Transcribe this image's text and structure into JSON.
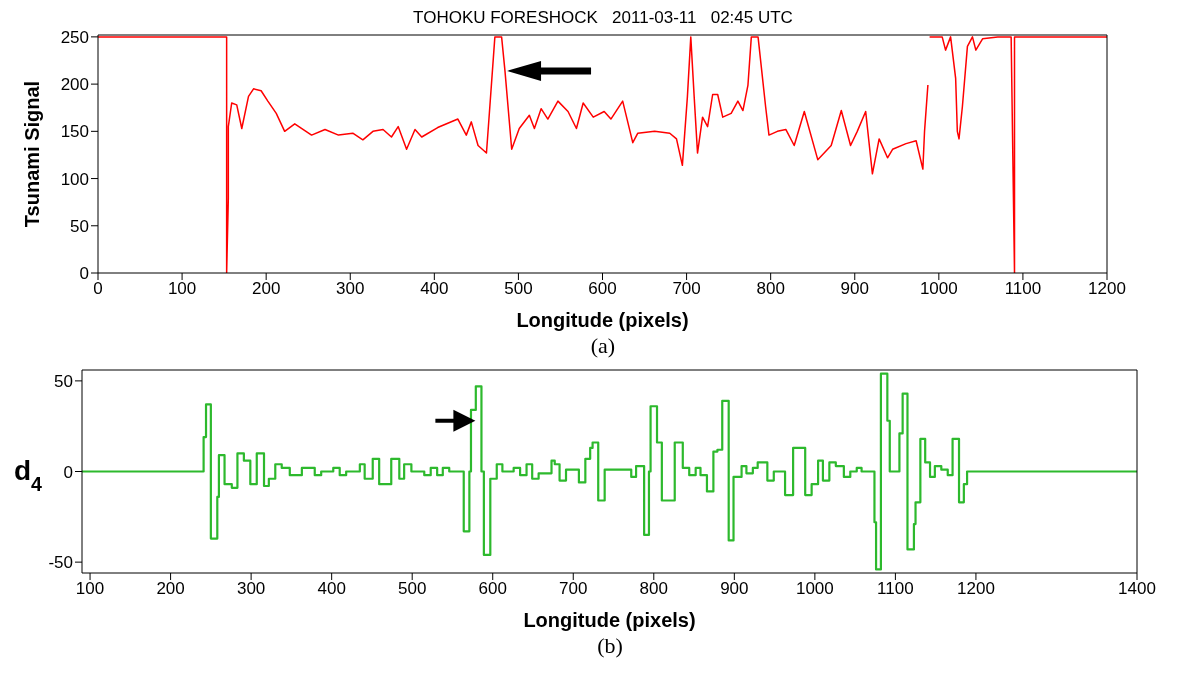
{
  "chart_data": [
    {
      "type": "line",
      "title": "TOHOKU FORESHOCK   2011-03-11   02:45 UTC",
      "xlabel": "Longitude (pixels)",
      "ylabel": "Tsunami Signal",
      "annotations": [
        "(a)"
      ],
      "color": "#ff0000",
      "xlim": [
        0,
        1200
      ],
      "xticks": [
        0,
        100,
        200,
        300,
        400,
        500,
        600,
        700,
        800,
        900,
        1000,
        1100,
        1200
      ],
      "ylim": [
        0,
        252
      ],
      "yticks": [
        0,
        50,
        100,
        150,
        200,
        250
      ],
      "x": [
        0,
        153,
        153,
        155,
        155,
        159,
        165,
        171,
        179,
        185,
        194,
        202,
        212,
        222,
        234,
        254,
        270,
        286,
        303,
        315,
        327,
        339,
        349,
        357,
        367,
        377,
        385,
        404,
        428,
        438,
        444,
        452,
        462,
        466,
        472,
        480,
        484,
        492,
        501,
        513,
        519,
        527,
        535,
        547,
        559,
        569,
        577,
        589,
        602,
        610,
        624,
        636,
        642,
        662,
        680,
        688,
        695,
        701,
        705,
        709,
        713,
        719,
        725,
        731,
        737,
        743,
        753,
        761,
        767,
        773,
        777,
        785,
        794,
        798,
        808,
        818,
        828,
        840,
        856,
        872,
        884,
        895,
        903,
        913,
        921,
        929,
        939,
        945,
        961,
        973,
        981,
        983,
        987,
        988,
        989,
        1004,
        1008,
        1014,
        1020,
        1022,
        1024,
        1028,
        1034,
        1040,
        1044,
        1052,
        1070,
        1086,
        1088,
        1090,
        1090,
        1200
      ],
      "values": [
        250,
        250,
        0,
        79,
        155,
        180,
        178,
        153,
        187,
        195,
        193,
        182,
        169,
        150,
        158,
        146,
        152,
        146,
        148,
        141,
        150,
        152,
        144,
        155,
        131,
        152,
        144,
        154,
        163,
        146,
        160,
        135,
        127,
        176,
        250,
        250,
        214,
        131,
        153,
        167,
        153,
        174,
        163,
        182,
        171,
        153,
        180,
        165,
        171,
        163,
        182,
        138,
        148,
        150,
        148,
        142,
        114,
        187,
        250,
        187,
        127,
        165,
        155,
        189,
        189,
        165,
        169,
        182,
        172,
        199,
        250,
        250,
        176,
        146,
        150,
        152,
        135,
        171,
        120,
        135,
        172,
        135,
        150,
        171,
        105,
        142,
        122,
        131,
        137,
        140,
        110,
        150,
        199,
        null,
        250,
        250,
        236,
        250,
        206,
        150,
        142,
        176,
        240,
        250,
        236,
        248,
        250,
        250,
        124,
        0,
        250,
        250
      ]
    },
    {
      "type": "step",
      "xlabel": "Longitude (pixels)",
      "ylabel": "d$_{4}$",
      "annotations": [
        "(b)"
      ],
      "color": "#2db92d",
      "xlim": [
        90,
        1400
      ],
      "xticks": [
        100,
        200,
        300,
        400,
        500,
        600,
        700,
        800,
        900,
        1000,
        1100,
        1200,
        1400
      ],
      "ylim": [
        -56,
        56
      ],
      "yticks": [
        -50,
        0,
        50
      ],
      "x": [
        90,
        241,
        244,
        250,
        258,
        260,
        267,
        276,
        283,
        291,
        299,
        307,
        316,
        322,
        330,
        338,
        348,
        363,
        379,
        387,
        402,
        410,
        418,
        435,
        441,
        451,
        459,
        474,
        484,
        490,
        499,
        515,
        523,
        531,
        538,
        546,
        564,
        571,
        573,
        579,
        586,
        589,
        597,
        605,
        612,
        626,
        634,
        642,
        649,
        657,
        673,
        677,
        683,
        691,
        707,
        715,
        721,
        724,
        731,
        739,
        772,
        778,
        788,
        794,
        796,
        804,
        810,
        826,
        836,
        844,
        852,
        858,
        866,
        874,
        879,
        885,
        893,
        899,
        909,
        915,
        923,
        929,
        941,
        949,
        963,
        973,
        988,
        996,
        1004,
        1010,
        1018,
        1026,
        1036,
        1044,
        1052,
        1058,
        1074,
        1076,
        1082,
        1090,
        1093,
        1105,
        1109,
        1115,
        1123,
        1125,
        1131,
        1137,
        1143,
        1149,
        1157,
        1165,
        1171,
        1179,
        1185,
        1189,
        1400
      ],
      "values": [
        0,
        19,
        37,
        -37,
        -14,
        9,
        -7,
        -9,
        10,
        6,
        -7,
        10,
        -8,
        -4,
        4,
        2,
        -2,
        2,
        -2,
        0,
        2,
        -2,
        0,
        4,
        -4,
        7,
        -7,
        7,
        -4,
        4,
        0,
        -2,
        2,
        -2,
        2,
        0,
        -33,
        0,
        34,
        47,
        0,
        -46,
        -4,
        4,
        0,
        2,
        -2,
        4,
        -4,
        -1,
        6,
        4,
        -5,
        1,
        -6,
        7,
        13,
        16,
        -16,
        1,
        -3,
        3,
        -35,
        0,
        36,
        16,
        -16,
        16,
        2,
        -2,
        2,
        -2,
        -11,
        11,
        12,
        39,
        -38,
        -3,
        3,
        -1,
        2,
        5,
        -5,
        0,
        -13,
        13,
        -13,
        -7,
        6,
        -5,
        5,
        3,
        -3,
        0,
        2,
        0,
        -28,
        -54,
        54,
        28,
        0,
        21,
        43,
        -43,
        -29,
        -17,
        18,
        5,
        -3,
        3,
        1,
        -2,
        18,
        -17,
        -7,
        0,
        0
      ]
    }
  ]
}
